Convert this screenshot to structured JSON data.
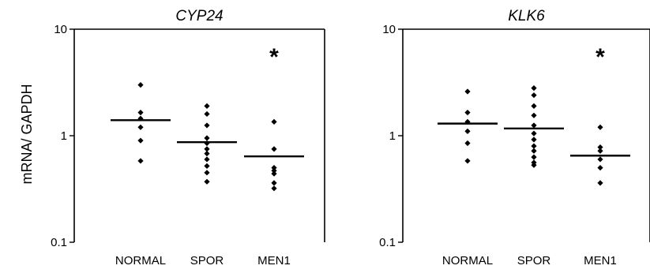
{
  "figure": {
    "ylabel": "mRNA/ GAPDH"
  },
  "chart_data": [
    {
      "type": "scatter",
      "title": "CYP24",
      "ylabel": "mRNA/ GAPDH",
      "xlabel": "",
      "yscale": "log",
      "ylim": [
        0.1,
        10
      ],
      "yticks": [
        "10",
        "1",
        "0.1"
      ],
      "categories": [
        "NORMAL",
        "SPOR",
        "MEN1"
      ],
      "points": [
        [
          3.0,
          1.65,
          1.45,
          1.2,
          0.9,
          0.58
        ],
        [
          1.9,
          1.6,
          1.25,
          0.95,
          0.85,
          0.75,
          0.68,
          0.6,
          0.52,
          0.45,
          0.37
        ],
        [
          1.35,
          0.75,
          0.5,
          0.47,
          0.44,
          0.36,
          0.32
        ]
      ],
      "means": [
        1.4,
        0.87,
        0.64
      ],
      "annotations": [
        {
          "category": "MEN1",
          "text": "*"
        }
      ]
    },
    {
      "type": "scatter",
      "title": "KLK6",
      "ylabel": "",
      "xlabel": "",
      "yscale": "log",
      "ylim": [
        0.1,
        10
      ],
      "yticks": [
        "10",
        "1",
        "0.1"
      ],
      "categories": [
        "NORMAL",
        "SPOR",
        "MEN1"
      ],
      "points": [
        [
          2.6,
          1.65,
          1.35,
          1.1,
          0.85,
          0.58
        ],
        [
          2.8,
          2.4,
          1.9,
          1.55,
          1.25,
          1.05,
          0.92,
          0.8,
          0.72,
          0.63,
          0.56,
          0.53
        ],
        [
          1.2,
          0.78,
          0.72,
          0.6,
          0.5,
          0.36
        ]
      ],
      "means": [
        1.3,
        1.17,
        0.65
      ],
      "annotations": [
        {
          "category": "MEN1",
          "text": "*"
        }
      ]
    }
  ]
}
